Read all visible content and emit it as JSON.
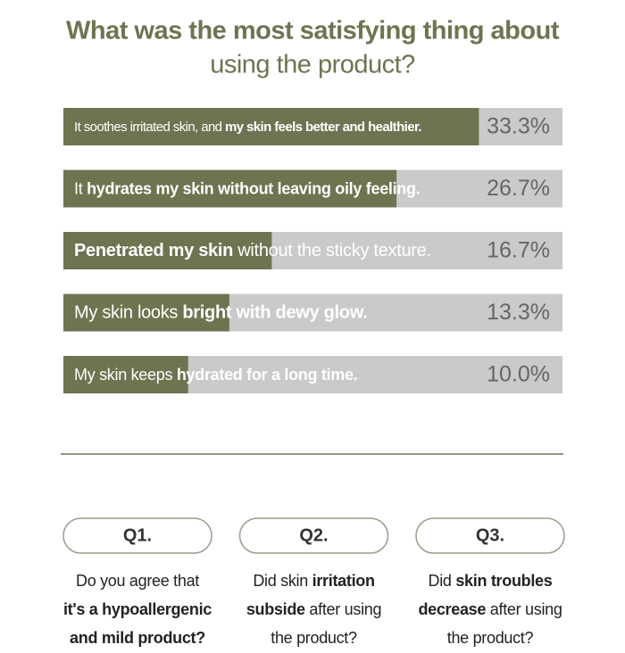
{
  "chart_data": {
    "type": "bar",
    "title": [
      "What was the most satisfying thing about",
      "using the product?"
    ],
    "categories": [
      [
        {
          "text": "It soothes irritated skin, and ",
          "bold": false
        },
        {
          "text": "my skin feels better and healthier.",
          "bold": true
        }
      ],
      [
        {
          "text": "It ",
          "bold": false
        },
        {
          "text": "hydrates my skin without leaving oily feeling.",
          "bold": true
        }
      ],
      [
        {
          "text": "Penetrated my skin",
          "bold": true
        },
        {
          "text": " without the sticky texture.",
          "bold": false
        }
      ],
      [
        {
          "text": "My skin looks ",
          "bold": false
        },
        {
          "text": "bright with dewy glow.",
          "bold": true
        }
      ],
      [
        {
          "text": "My skin keeps ",
          "bold": false
        },
        {
          "text": "hydrated for a long time.",
          "bold": true
        }
      ]
    ],
    "values": [
      33.3,
      26.7,
      16.7,
      13.3,
      10.0
    ],
    "value_labels": [
      "33.3%",
      "26.7%",
      "16.7%",
      "13.3%",
      "10.0%"
    ],
    "color": "#6e7450",
    "track_color": "#c9caca"
  },
  "questions": [
    {
      "label": "Q1.",
      "lines": [
        [
          {
            "text": "Do you agree that",
            "bold": false
          }
        ],
        [
          {
            "text": "it's a hypoallergenic",
            "bold": true
          }
        ],
        [
          {
            "text": "and mild product?",
            "bold": true
          }
        ]
      ]
    },
    {
      "label": "Q2.",
      "lines": [
        [
          {
            "text": "Did skin ",
            "bold": false
          },
          {
            "text": "irritation",
            "bold": true
          }
        ],
        [
          {
            "text": "subside",
            "bold": true
          },
          {
            "text": " after using",
            "bold": false
          }
        ],
        [
          {
            "text": "the product?",
            "bold": false
          }
        ]
      ]
    },
    {
      "label": "Q3.",
      "lines": [
        [
          {
            "text": "Did ",
            "bold": false
          },
          {
            "text": "skin troubles",
            "bold": true
          }
        ],
        [
          {
            "text": "decrease",
            "bold": true
          },
          {
            "text": " after using",
            "bold": false
          }
        ],
        [
          {
            "text": "the product?",
            "bold": false
          }
        ]
      ]
    }
  ]
}
